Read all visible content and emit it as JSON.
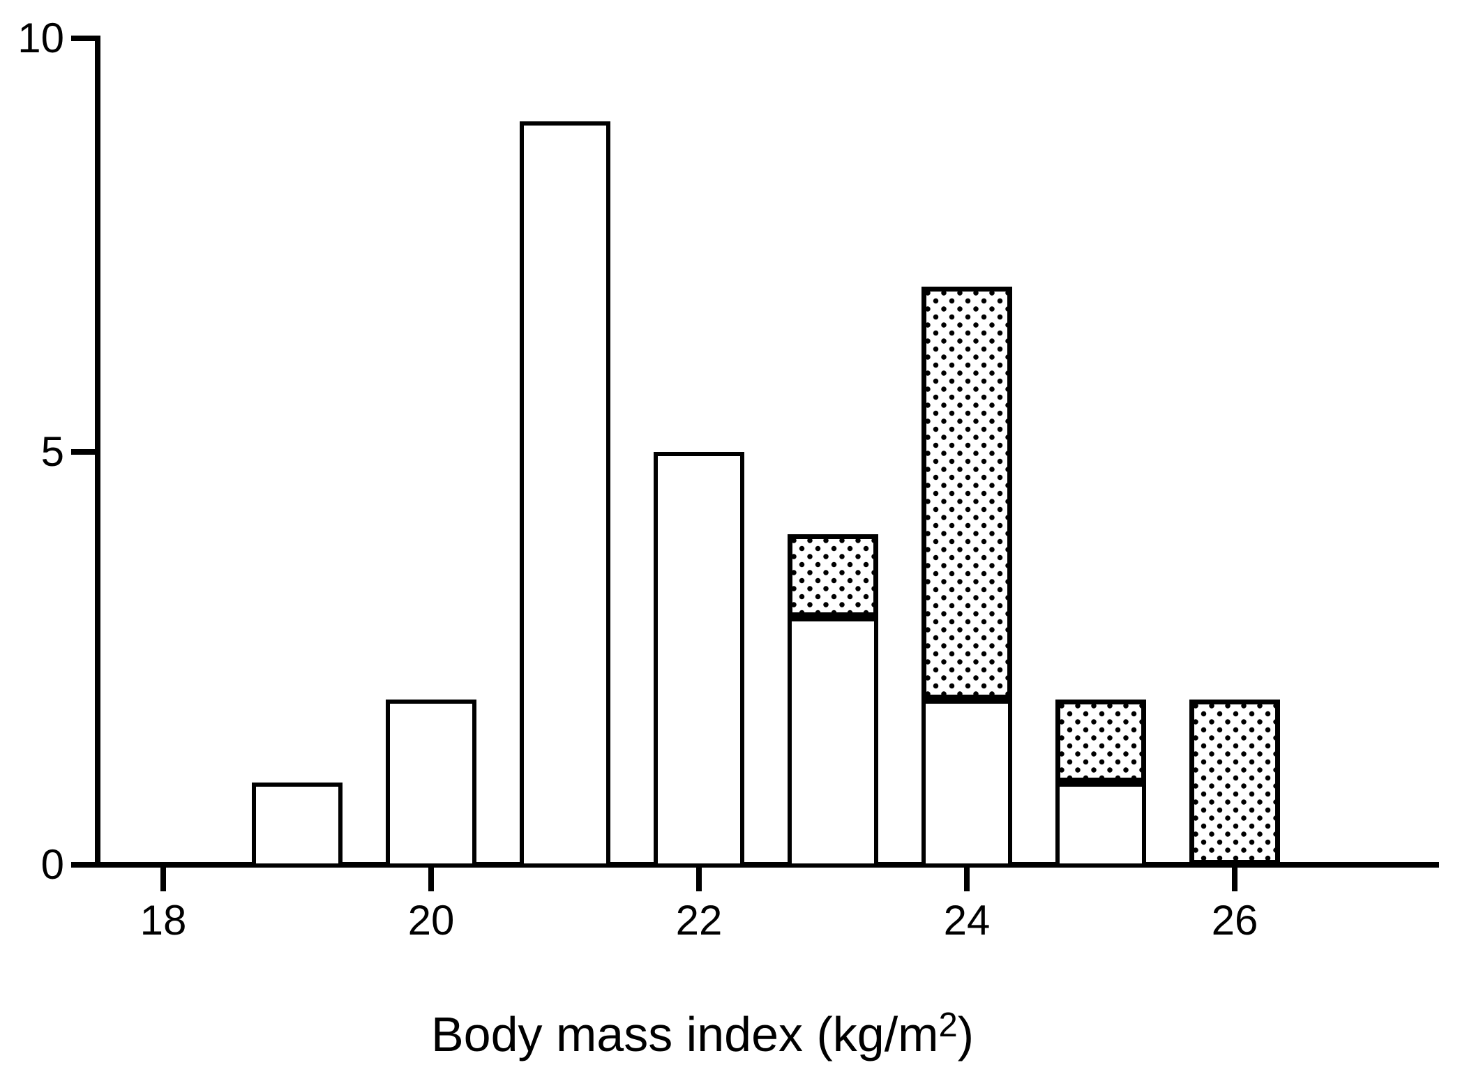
{
  "figure": {
    "background_color": "#ffffff",
    "ink_color": "#000000"
  },
  "chart_data": {
    "type": "bar",
    "subtype": "stacked-histogram",
    "title": "",
    "xlabel_plain": "Body mass index (kg/m2)",
    "xlabel_parts": {
      "main": "Body mass index (kg/m",
      "sup": "2",
      "end": ")"
    },
    "ylabel": "",
    "x_ticks": [
      18,
      20,
      22,
      24,
      26
    ],
    "y_ticks": [
      0,
      5,
      10
    ],
    "xlim": [
      17.5,
      27.5
    ],
    "ylim": [
      0,
      10
    ],
    "grid": "off",
    "legend": "none",
    "bar_width_units": 0.68,
    "categories": [
      19,
      20,
      21,
      22,
      23,
      24,
      25,
      26
    ],
    "series": [
      {
        "name": "plain-white-fill",
        "pattern": "solid-white",
        "values": [
          1,
          2,
          9,
          5,
          3,
          2,
          1,
          0
        ]
      },
      {
        "name": "stippled-dot-fill",
        "pattern": "dotted",
        "values": [
          0,
          0,
          0,
          0,
          1,
          5,
          1,
          2
        ]
      }
    ],
    "totals": [
      1,
      2,
      9,
      5,
      4,
      7,
      2,
      2
    ]
  }
}
